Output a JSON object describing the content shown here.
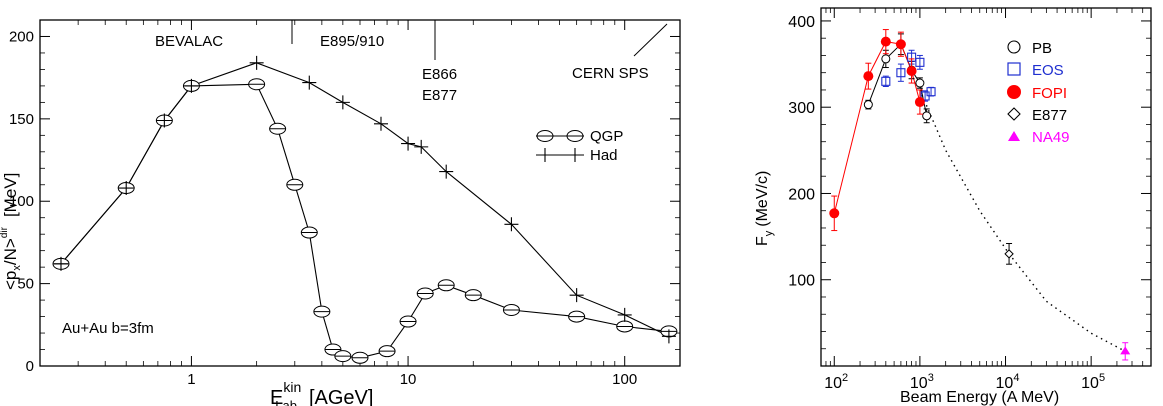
{
  "chart_data": [
    {
      "type": "line",
      "xlabel": "E",
      "xlabel_sup": "kin",
      "xlabel_sub": "Lab",
      "xlabel_unit": "[AGeV]",
      "ylabel": "<p",
      "ylabel_sub": "x",
      "ylabel_mid": "/N>",
      "ylabel_sup": "dir",
      "ylabel_unit": "[MeV]",
      "x_scale": "log",
      "xlim": [
        0.2,
        180
      ],
      "ylim": [
        0,
        210
      ],
      "xticks": [
        {
          "v": 1,
          "label": "1"
        },
        {
          "v": 10,
          "label": "10"
        },
        {
          "v": 100,
          "label": "100"
        }
      ],
      "yticks": [
        {
          "v": 0,
          "label": "0"
        },
        {
          "v": 50,
          "label": "50"
        },
        {
          "v": 100,
          "label": "100"
        },
        {
          "v": 150,
          "label": "150"
        },
        {
          "v": 200,
          "label": "200"
        }
      ],
      "annotations": {
        "bevalac": "BEVALAC",
        "e895": "E895/910",
        "e866": "E866",
        "e877": "E877",
        "cern": "CERN SPS",
        "system": "Au+Au b=3fm"
      },
      "series": [
        {
          "name": "QGP",
          "marker": "ellipse",
          "x": [
            0.25,
            0.5,
            0.75,
            1.0,
            2.0,
            2.5,
            3.0,
            3.5,
            4.0,
            4.5,
            5.0,
            6.0,
            8.0,
            10.0,
            12.0,
            15.0,
            20.0,
            30.0,
            60.0,
            100.0,
            160.0
          ],
          "y": [
            62,
            108,
            149,
            170,
            171,
            144,
            110,
            81,
            33,
            10,
            6,
            5,
            9,
            27,
            44,
            49,
            43,
            34,
            30,
            24,
            21
          ]
        },
        {
          "name": "Had",
          "marker": "plus",
          "x": [
            0.25,
            0.5,
            0.75,
            1.0,
            2.0,
            3.5,
            5.0,
            7.5,
            10.0,
            11.5,
            15.0,
            30.0,
            60.0,
            100.0,
            160.0
          ],
          "y": [
            62,
            108,
            149,
            170,
            184,
            172,
            160,
            147,
            135,
            133,
            118,
            86,
            43,
            31,
            18
          ]
        }
      ]
    },
    {
      "type": "scatter",
      "xlabel": "Beam Energy (A MeV)",
      "ylabel": "F",
      "ylabel_sub": "y",
      "ylabel_unit": "(MeV/c)",
      "x_scale": "log",
      "xlim": [
        70,
        500000
      ],
      "ylim": [
        0,
        415
      ],
      "xticks": [
        {
          "v": 100,
          "base": "10",
          "exp": "2"
        },
        {
          "v": 1000,
          "base": "10",
          "exp": "3"
        },
        {
          "v": 10000,
          "base": "10",
          "exp": "4"
        },
        {
          "v": 100000,
          "base": "10",
          "exp": "5"
        }
      ],
      "yticks": [
        {
          "v": 100,
          "label": "100"
        },
        {
          "v": 200,
          "label": "200"
        },
        {
          "v": 300,
          "label": "300"
        },
        {
          "v": 400,
          "label": "400"
        }
      ],
      "series": [
        {
          "name": "PB",
          "marker": "open-circle",
          "color": "#000000",
          "x": [
            250,
            400,
            600,
            800,
            1000,
            1200
          ],
          "y": [
            303,
            356,
            373,
            343,
            328,
            290
          ],
          "err": [
            5,
            10,
            12,
            10,
            6,
            8
          ]
        },
        {
          "name": "EOS",
          "marker": "open-square",
          "color": "#1f2fd0",
          "x": [
            400,
            600,
            800,
            1000,
            1150,
            1350
          ],
          "y": [
            330,
            340,
            358,
            352,
            313,
            318
          ],
          "err": [
            6,
            10,
            8,
            8,
            6,
            5
          ]
        },
        {
          "name": "FOPI",
          "marker": "filled-circle",
          "color": "#ff0000",
          "connected": true,
          "x": [
            100,
            250,
            400,
            600,
            800,
            1000
          ],
          "y": [
            177,
            336,
            376,
            373,
            342,
            306
          ],
          "err": [
            20,
            15,
            14,
            14,
            14,
            14
          ]
        },
        {
          "name": "E877",
          "marker": "open-diamond",
          "color": "#000000",
          "x": [
            11000
          ],
          "y": [
            130
          ],
          "err": [
            12
          ]
        },
        {
          "name": "NA49",
          "marker": "filled-triangle",
          "color": "#ff00ff",
          "x": [
            250000
          ],
          "y": [
            17
          ],
          "err": [
            10
          ]
        }
      ],
      "dotted_curve": {
        "x": [
          1000,
          2000,
          5000,
          11000,
          30000,
          100000,
          250000
        ],
        "y": [
          320,
          250,
          180,
          130,
          75,
          38,
          17
        ]
      }
    }
  ]
}
